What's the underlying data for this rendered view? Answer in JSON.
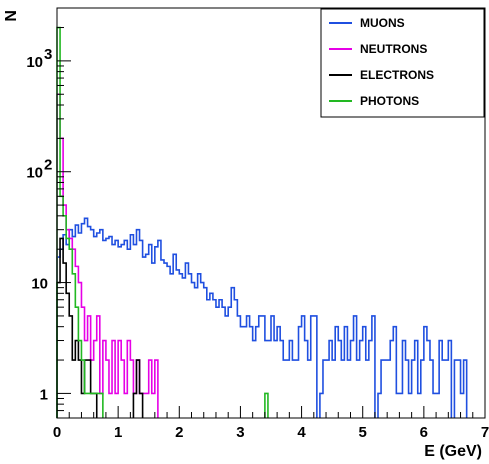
{
  "chart_data": {
    "type": "histogram",
    "xlabel": "E (GeV)",
    "ylabel": "N",
    "xlim": [
      0,
      7
    ],
    "ylim": [
      0.6,
      3000
    ],
    "yscale": "log",
    "grid": false,
    "legend_position": "top-right",
    "x_ticks": [
      {
        "value": 0,
        "label": "0"
      },
      {
        "value": 1,
        "label": "1"
      },
      {
        "value": 2,
        "label": "2"
      },
      {
        "value": 3,
        "label": "3"
      },
      {
        "value": 4,
        "label": "4"
      },
      {
        "value": 5,
        "label": "5"
      },
      {
        "value": 6,
        "label": "6"
      },
      {
        "value": 7,
        "label": "7"
      }
    ],
    "y_ticks": [
      {
        "value": 1,
        "label": "1"
      },
      {
        "value": 10,
        "label": "10"
      },
      {
        "value": 100,
        "label": "10",
        "exponent": "2"
      },
      {
        "value": 1000,
        "label": "10",
        "exponent": "3"
      }
    ],
    "bin_width": 0.05,
    "series": [
      {
        "name": "MUONS",
        "color": "#1f4fe0",
        "bins": [
          [
            0.0,
            17
          ],
          [
            0.05,
            20
          ],
          [
            0.1,
            27
          ],
          [
            0.15,
            22
          ],
          [
            0.2,
            30
          ],
          [
            0.25,
            26
          ],
          [
            0.3,
            33
          ],
          [
            0.35,
            28
          ],
          [
            0.4,
            34
          ],
          [
            0.45,
            38
          ],
          [
            0.5,
            32
          ],
          [
            0.55,
            30
          ],
          [
            0.6,
            26
          ],
          [
            0.65,
            28
          ],
          [
            0.7,
            30
          ],
          [
            0.75,
            24
          ],
          [
            0.8,
            25
          ],
          [
            0.85,
            26
          ],
          [
            0.9,
            22
          ],
          [
            0.95,
            24
          ],
          [
            1.0,
            21
          ],
          [
            1.05,
            22
          ],
          [
            1.1,
            24
          ],
          [
            1.15,
            20
          ],
          [
            1.2,
            27
          ],
          [
            1.25,
            22
          ],
          [
            1.3,
            30
          ],
          [
            1.35,
            24
          ],
          [
            1.4,
            17
          ],
          [
            1.45,
            18
          ],
          [
            1.5,
            22
          ],
          [
            1.55,
            15
          ],
          [
            1.6,
            21
          ],
          [
            1.65,
            24
          ],
          [
            1.7,
            16
          ],
          [
            1.75,
            15
          ],
          [
            1.8,
            14
          ],
          [
            1.85,
            12
          ],
          [
            1.9,
            18
          ],
          [
            1.95,
            13
          ],
          [
            2.0,
            12
          ],
          [
            2.05,
            11
          ],
          [
            2.1,
            15
          ],
          [
            2.15,
            12
          ],
          [
            2.2,
            10
          ],
          [
            2.25,
            9
          ],
          [
            2.3,
            12
          ],
          [
            2.35,
            10
          ],
          [
            2.4,
            9
          ],
          [
            2.45,
            7
          ],
          [
            2.5,
            8
          ],
          [
            2.55,
            7
          ],
          [
            2.6,
            6
          ],
          [
            2.65,
            7
          ],
          [
            2.7,
            6
          ],
          [
            2.75,
            5
          ],
          [
            2.8,
            6
          ],
          [
            2.85,
            9
          ],
          [
            2.9,
            7
          ],
          [
            2.95,
            5
          ],
          [
            3.0,
            4
          ],
          [
            3.05,
            4
          ],
          [
            3.1,
            5
          ],
          [
            3.15,
            4
          ],
          [
            3.2,
            3
          ],
          [
            3.25,
            4
          ],
          [
            3.3,
            5
          ],
          [
            3.35,
            5
          ],
          [
            3.4,
            3
          ],
          [
            3.45,
            3
          ],
          [
            3.5,
            5
          ],
          [
            3.55,
            3
          ],
          [
            3.6,
            4
          ],
          [
            3.65,
            3
          ],
          [
            3.7,
            2
          ],
          [
            3.75,
            2
          ],
          [
            3.8,
            3
          ],
          [
            3.85,
            2
          ],
          [
            3.9,
            2
          ],
          [
            3.95,
            4
          ],
          [
            4.0,
            5
          ],
          [
            4.05,
            3
          ],
          [
            4.1,
            2
          ],
          [
            4.15,
            5
          ],
          [
            4.2,
            5
          ],
          [
            4.25,
            0
          ],
          [
            4.3,
            1
          ],
          [
            4.35,
            2
          ],
          [
            4.4,
            2
          ],
          [
            4.45,
            3
          ],
          [
            4.5,
            2
          ],
          [
            4.55,
            4
          ],
          [
            4.6,
            3
          ],
          [
            4.65,
            2
          ],
          [
            4.7,
            4
          ],
          [
            4.75,
            2
          ],
          [
            4.8,
            3
          ],
          [
            4.85,
            5
          ],
          [
            4.9,
            2
          ],
          [
            4.95,
            3
          ],
          [
            5.0,
            4
          ],
          [
            5.05,
            2
          ],
          [
            5.1,
            3
          ],
          [
            5.15,
            5
          ],
          [
            5.2,
            0
          ],
          [
            5.25,
            1
          ],
          [
            5.3,
            2
          ],
          [
            5.35,
            2
          ],
          [
            5.4,
            2
          ],
          [
            5.45,
            3
          ],
          [
            5.5,
            4
          ],
          [
            5.55,
            1
          ],
          [
            5.6,
            1
          ],
          [
            5.65,
            3
          ],
          [
            5.7,
            2
          ],
          [
            5.75,
            1
          ],
          [
            5.8,
            2
          ],
          [
            5.85,
            3
          ],
          [
            5.9,
            1
          ],
          [
            5.95,
            2
          ],
          [
            6.0,
            4
          ],
          [
            6.05,
            3
          ],
          [
            6.1,
            2
          ],
          [
            6.15,
            1
          ],
          [
            6.2,
            1
          ],
          [
            6.25,
            3
          ],
          [
            6.3,
            2
          ],
          [
            6.35,
            2
          ],
          [
            6.4,
            3
          ],
          [
            6.45,
            0
          ],
          [
            6.5,
            2
          ],
          [
            6.55,
            2
          ],
          [
            6.6,
            1
          ],
          [
            6.65,
            2
          ],
          [
            6.7,
            0
          ]
        ]
      },
      {
        "name": "NEUTRONS",
        "color": "#e600e6",
        "bins": [
          [
            0.0,
            500
          ],
          [
            0.05,
            200
          ],
          [
            0.1,
            50
          ],
          [
            0.15,
            30
          ],
          [
            0.2,
            25
          ],
          [
            0.25,
            20
          ],
          [
            0.3,
            14
          ],
          [
            0.35,
            10
          ],
          [
            0.4,
            6
          ],
          [
            0.45,
            3
          ],
          [
            0.5,
            5
          ],
          [
            0.55,
            2
          ],
          [
            0.6,
            3
          ],
          [
            0.65,
            5
          ],
          [
            0.7,
            1
          ],
          [
            0.75,
            3
          ],
          [
            0.8,
            2
          ],
          [
            0.85,
            1
          ],
          [
            0.9,
            3
          ],
          [
            0.95,
            1
          ],
          [
            1.0,
            3
          ],
          [
            1.05,
            2
          ],
          [
            1.1,
            1
          ],
          [
            1.15,
            3
          ],
          [
            1.2,
            2
          ],
          [
            1.25,
            1
          ],
          [
            1.3,
            2
          ],
          [
            1.35,
            1
          ],
          [
            1.4,
            1
          ],
          [
            1.45,
            1
          ],
          [
            1.5,
            2
          ],
          [
            1.55,
            1
          ],
          [
            1.6,
            2
          ],
          [
            1.65,
            0
          ]
        ]
      },
      {
        "name": "ELECTRONS",
        "color": "#000000",
        "bins": [
          [
            0.0,
            10
          ],
          [
            0.05,
            25
          ],
          [
            0.1,
            15
          ],
          [
            0.15,
            8
          ],
          [
            0.2,
            5
          ],
          [
            0.25,
            2
          ],
          [
            0.3,
            3
          ],
          [
            0.35,
            2
          ],
          [
            0.4,
            1
          ],
          [
            0.45,
            2
          ],
          [
            0.5,
            2
          ],
          [
            0.55,
            1
          ],
          [
            0.6,
            1
          ],
          [
            0.65,
            0
          ],
          [
            0.7,
            0
          ],
          [
            0.75,
            0
          ],
          [
            0.8,
            0
          ],
          [
            0.85,
            0
          ],
          [
            0.9,
            0
          ],
          [
            0.95,
            0
          ],
          [
            1.0,
            0
          ],
          [
            1.05,
            0
          ],
          [
            1.1,
            0
          ],
          [
            1.15,
            0
          ],
          [
            1.2,
            0
          ],
          [
            1.25,
            1
          ],
          [
            1.3,
            2
          ],
          [
            1.35,
            1
          ],
          [
            1.4,
            0
          ]
        ]
      },
      {
        "name": "PHOTONS",
        "color": "#22b822",
        "bins": [
          [
            0.0,
            2000
          ],
          [
            0.05,
            60
          ],
          [
            0.1,
            40
          ],
          [
            0.15,
            25
          ],
          [
            0.2,
            20
          ],
          [
            0.25,
            12
          ],
          [
            0.3,
            6
          ],
          [
            0.35,
            3
          ],
          [
            0.4,
            2
          ],
          [
            0.45,
            1
          ],
          [
            0.5,
            1
          ],
          [
            0.55,
            1
          ],
          [
            0.6,
            1
          ],
          [
            0.65,
            1
          ],
          [
            0.7,
            1
          ],
          [
            0.75,
            0
          ],
          [
            3.35,
            0
          ],
          [
            3.4,
            1
          ],
          [
            3.45,
            0
          ]
        ]
      }
    ]
  }
}
